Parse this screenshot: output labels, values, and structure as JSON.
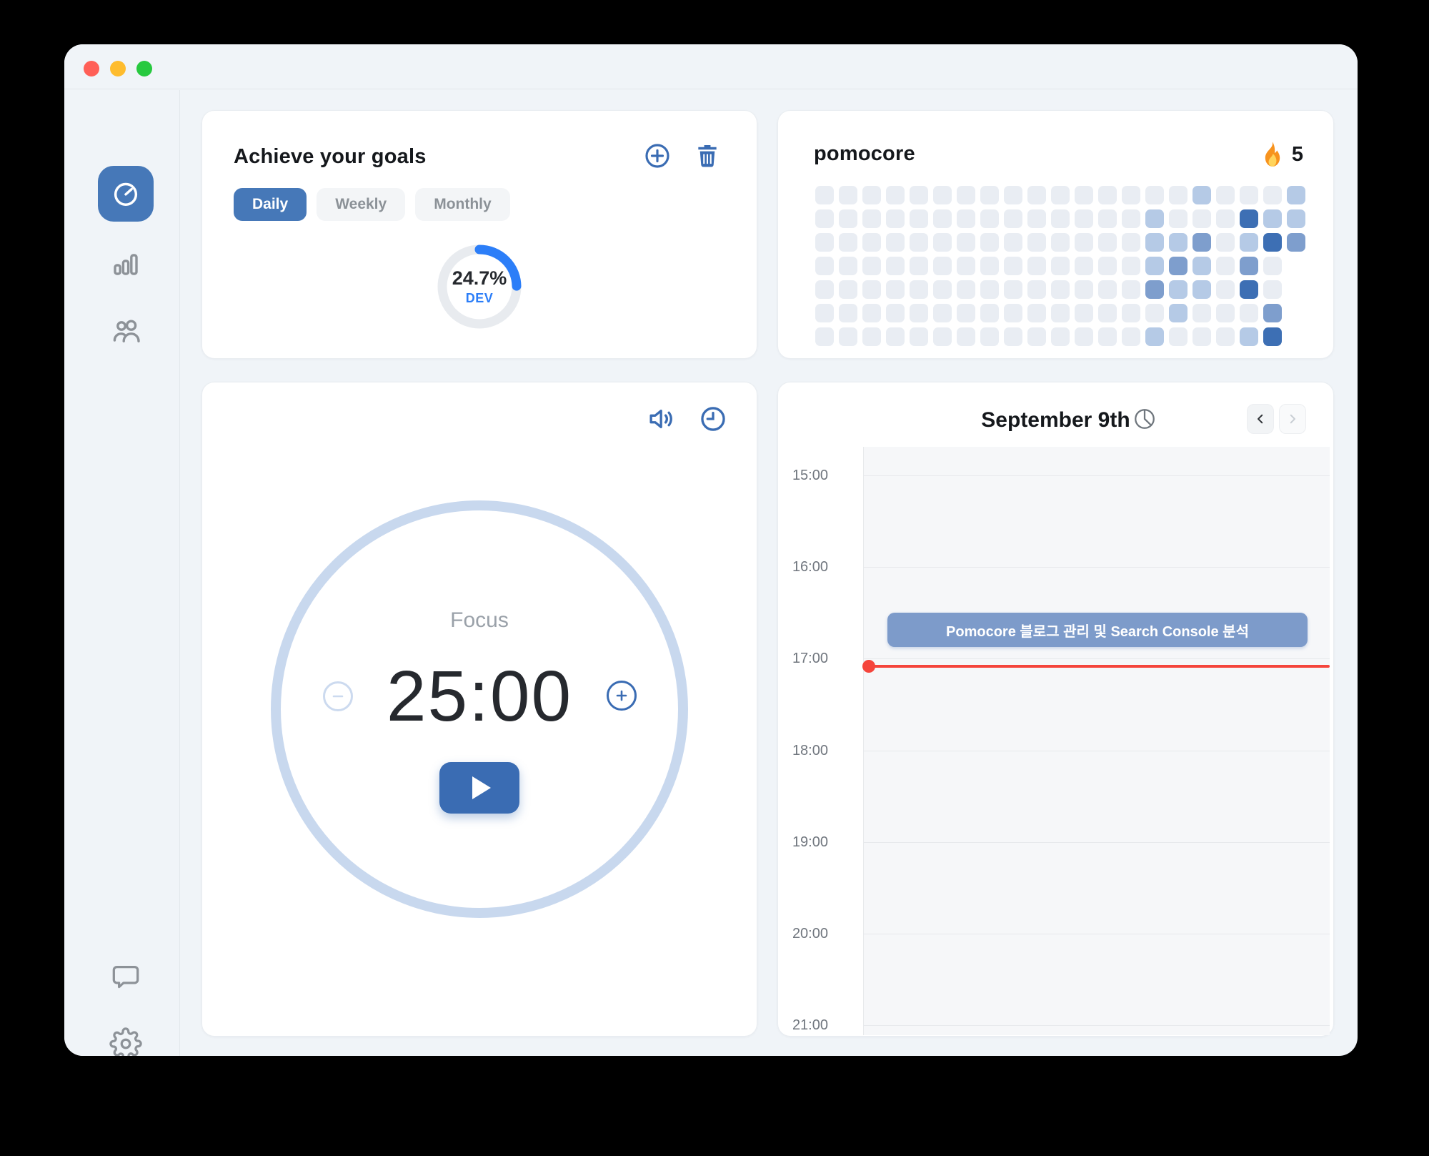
{
  "window": {
    "traffic_lights": [
      "close",
      "minimize",
      "zoom"
    ]
  },
  "sidebar": {
    "items": [
      {
        "id": "timer",
        "icon": "stopwatch-icon",
        "active": true
      },
      {
        "id": "stats",
        "icon": "bar-chart-icon",
        "active": false
      },
      {
        "id": "friends",
        "icon": "people-icon",
        "active": false
      },
      {
        "id": "feedback",
        "icon": "chat-bubble-icon",
        "active": false
      },
      {
        "id": "settings",
        "icon": "gear-icon",
        "active": false
      }
    ]
  },
  "goals": {
    "title": "Achieve your goals",
    "add_icon": "plus-circle-icon",
    "delete_icon": "trash-icon",
    "tabs": [
      {
        "label": "Daily",
        "active": true
      },
      {
        "label": "Weekly",
        "active": false
      },
      {
        "label": "Monthly",
        "active": false
      }
    ],
    "progress": {
      "percent_label": "24.7%",
      "percent": 24.7,
      "tag": "DEV"
    }
  },
  "streak": {
    "title": "pomocore",
    "flame_icon": "flame-icon",
    "count": "5",
    "heatmap": {
      "rows": 7,
      "cols": 21,
      "level_colors": [
        "#e9edf3",
        "#b5cae6",
        "#7e9ecd",
        "#3d6fb4"
      ],
      "cells": [
        [
          0,
          0,
          0,
          0,
          0,
          0,
          0,
          0,
          0,
          0,
          0,
          0,
          0,
          0,
          0,
          0,
          1,
          0,
          0,
          0,
          1
        ],
        [
          0,
          0,
          0,
          0,
          0,
          0,
          0,
          0,
          0,
          0,
          0,
          0,
          0,
          0,
          1,
          0,
          0,
          0,
          3,
          1,
          1
        ],
        [
          0,
          0,
          0,
          0,
          0,
          0,
          0,
          0,
          0,
          0,
          0,
          0,
          0,
          0,
          1,
          1,
          2,
          0,
          1,
          3,
          2
        ],
        [
          0,
          0,
          0,
          0,
          0,
          0,
          0,
          0,
          0,
          0,
          0,
          0,
          0,
          0,
          1,
          2,
          1,
          0,
          2,
          0,
          -1
        ],
        [
          0,
          0,
          0,
          0,
          0,
          0,
          0,
          0,
          0,
          0,
          0,
          0,
          0,
          0,
          2,
          1,
          1,
          0,
          3,
          0,
          -1
        ],
        [
          0,
          0,
          0,
          0,
          0,
          0,
          0,
          0,
          0,
          0,
          0,
          0,
          0,
          0,
          0,
          1,
          0,
          0,
          0,
          2,
          -1
        ],
        [
          0,
          0,
          0,
          0,
          0,
          0,
          0,
          0,
          0,
          0,
          0,
          0,
          0,
          0,
          1,
          0,
          0,
          0,
          1,
          3,
          -1
        ]
      ]
    }
  },
  "timer": {
    "sound_icon": "volume-icon",
    "history_icon": "clock-icon",
    "session_label": "Focus",
    "time": "25:00",
    "decrease_icon": "minus-circle-icon",
    "increase_icon": "plus-circle-icon",
    "start_icon": "play-icon"
  },
  "calendar": {
    "title": "September 9th",
    "title_icon": "clock-pie-icon",
    "prev_icon": "chevron-left-icon",
    "next_icon": "chevron-right-icon",
    "hours": [
      "15:00",
      "16:00",
      "17:00",
      "18:00",
      "19:00",
      "20:00",
      "21:00"
    ],
    "event_label": "Pomocore 블로그 관리 및 Search Console 분석",
    "now_indicator": "current-time-line"
  },
  "colors": {
    "accent_steel_blue": "#4678b8",
    "accent_icon_blue": "#3a6cb3",
    "accent_bright_blue": "#2c7ef8",
    "event_blue": "#7d9bca",
    "now_red": "#f5453c",
    "ring_blue": "#c8d8ee"
  }
}
